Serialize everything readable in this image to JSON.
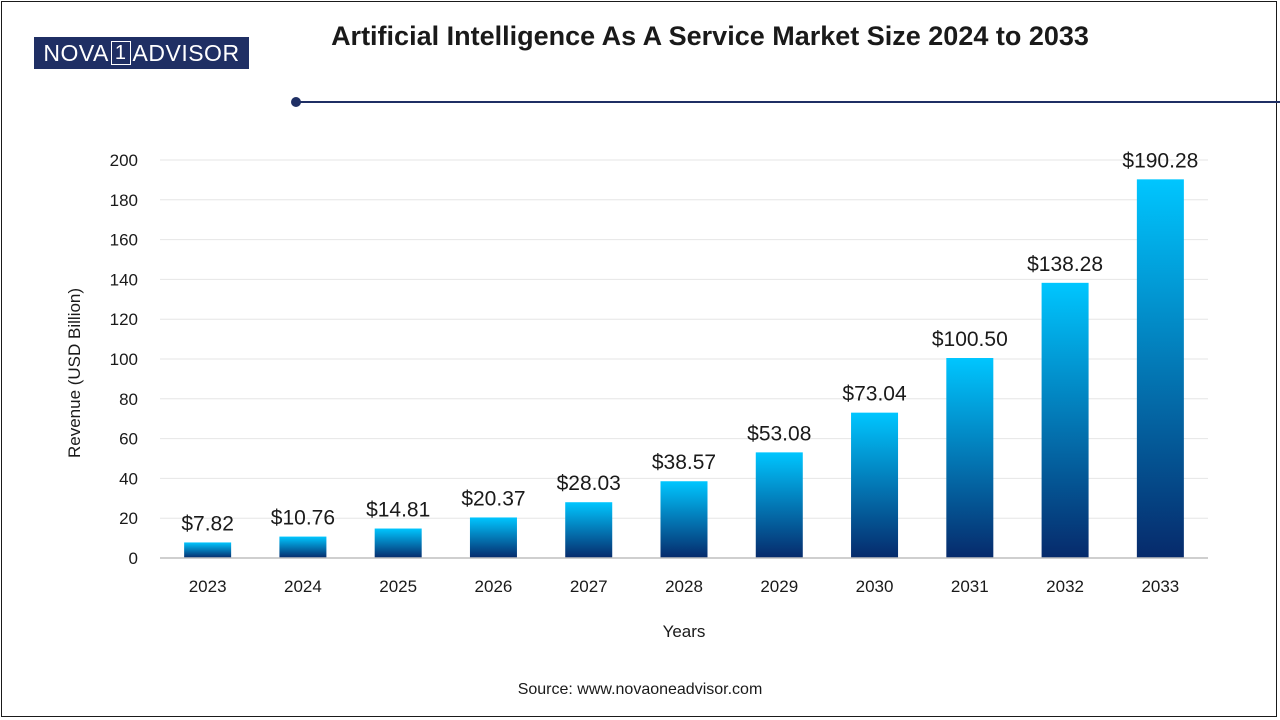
{
  "logo": {
    "prefix": "NOVA",
    "digit": "1",
    "suffix": "ADVISOR"
  },
  "header": {
    "title": "Artificial Intelligence As A Service Market Size 2024 to 2033"
  },
  "source": "Source: www.novaoneadvisor.com",
  "colors": {
    "bar_top": "#00c6ff",
    "bar_bottom": "#062a6b",
    "accent": "#1f2f64"
  },
  "chart_data": {
    "type": "bar",
    "title": "Artificial Intelligence As A Service Market Size 2024 to 2033",
    "xlabel": "Years",
    "ylabel": "Revenue (USD Billion)",
    "categories": [
      "2023",
      "2024",
      "2025",
      "2026",
      "2027",
      "2028",
      "2029",
      "2030",
      "2031",
      "2032",
      "2033"
    ],
    "values": [
      7.82,
      10.76,
      14.81,
      20.37,
      28.03,
      38.57,
      53.08,
      73.04,
      100.5,
      138.28,
      190.28
    ],
    "labels": [
      "$7.82",
      "$10.76",
      "$14.81",
      "$20.37",
      "$28.03",
      "$38.57",
      "$53.08",
      "$73.04",
      "$100.50",
      "$138.28",
      "$190.28"
    ],
    "ylim": [
      0,
      200
    ],
    "yticks": [
      "0",
      "20",
      "40",
      "60",
      "80",
      "100",
      "120",
      "140",
      "160",
      "180",
      "200"
    ],
    "grid": true
  }
}
